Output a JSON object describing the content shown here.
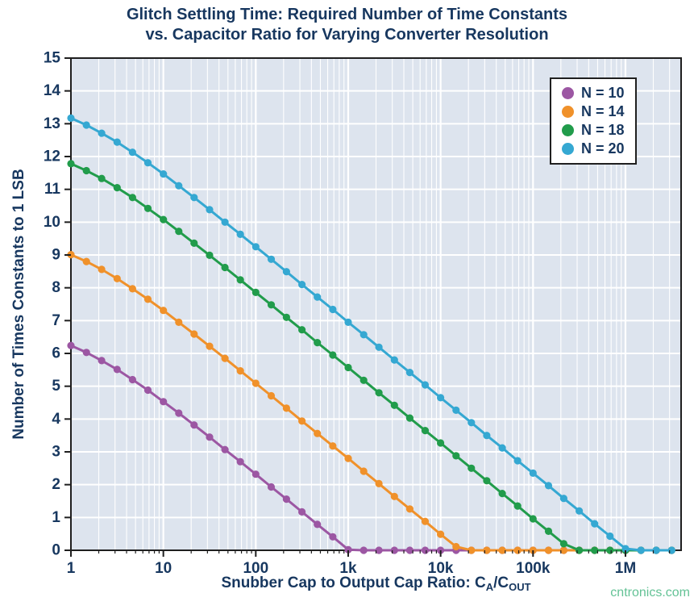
{
  "title": {
    "line1": "Glitch Settling Time: Required Number of Time Constants",
    "line2": "vs. Capacitor Ratio for Varying Converter Resolution"
  },
  "watermark": "cntronics.com",
  "chart_data": {
    "type": "line",
    "title": "Glitch Settling Time: Required Number of Time Constants vs. Capacitor Ratio for Varying Converter Resolution",
    "xlabel": "Snubber Cap to Output Cap Ratio: CA/COUT",
    "xlabel_parts": {
      "prefix": "Snubber Cap to Output Cap Ratio: C",
      "sub1": "A",
      "mid": "/C",
      "sub2": "OUT"
    },
    "ylabel": "Number of Times Constants to 1 LSB",
    "x_scale": "log",
    "grid": true,
    "legend_position": "top-right",
    "xlim": [
      1,
      4000000
    ],
    "ylim": [
      0,
      15
    ],
    "y_ticks": [
      0,
      1,
      2,
      3,
      4,
      5,
      6,
      7,
      8,
      9,
      10,
      11,
      12,
      13,
      14,
      15
    ],
    "x_ticks": [
      {
        "value": 1,
        "label": "1"
      },
      {
        "value": 10,
        "label": "10"
      },
      {
        "value": 100,
        "label": "100"
      },
      {
        "value": 1000,
        "label": "1k"
      },
      {
        "value": 10000,
        "label": "10k"
      },
      {
        "value": 100000,
        "label": "100k"
      },
      {
        "value": 1000000,
        "label": "1M"
      }
    ],
    "colors": {
      "plot_bg": "#dde4ee",
      "grid": "#ffffff",
      "axis": "#1f1f1f",
      "text": "#17375f"
    },
    "x": [
      1,
      1.47,
      2.15,
      3.16,
      4.64,
      6.81,
      10,
      14.7,
      21.5,
      31.6,
      46.4,
      68.1,
      100,
      147,
      215,
      316,
      464,
      681,
      1000,
      1470,
      2150,
      3160,
      4640,
      6810,
      10000,
      14700,
      21500,
      31600,
      46400,
      68100,
      100000,
      147000,
      215000,
      316000,
      464000,
      681000,
      1000000,
      1470000,
      2150000,
      3160000
    ],
    "series": [
      {
        "name": "N = 10",
        "color": "#9c57a3",
        "values": [
          6.24,
          6.03,
          5.78,
          5.51,
          5.2,
          4.88,
          4.53,
          4.18,
          3.82,
          3.45,
          3.07,
          2.7,
          2.32,
          1.93,
          1.56,
          1.17,
          0.79,
          0.41,
          0.02,
          0,
          0,
          0,
          0,
          0,
          0,
          0,
          0,
          0,
          0,
          0,
          0,
          0,
          0,
          0,
          0,
          0,
          0,
          0,
          0,
          0
        ]
      },
      {
        "name": "N = 14",
        "color": "#f0912a",
        "values": [
          9.01,
          8.8,
          8.56,
          8.28,
          7.97,
          7.65,
          7.31,
          6.95,
          6.59,
          6.22,
          5.85,
          5.47,
          5.09,
          4.71,
          4.33,
          3.94,
          3.56,
          3.18,
          2.8,
          2.41,
          2.03,
          1.64,
          1.26,
          0.88,
          0.49,
          0.11,
          0,
          0,
          0,
          0,
          0,
          0,
          0,
          0,
          0,
          0,
          0,
          0,
          0,
          0
        ]
      },
      {
        "name": "N = 18",
        "color": "#219c4b",
        "values": [
          11.78,
          11.57,
          11.33,
          11.05,
          10.75,
          10.42,
          10.08,
          9.72,
          9.36,
          8.99,
          8.62,
          8.24,
          7.86,
          7.48,
          7.1,
          6.72,
          6.33,
          5.95,
          5.57,
          5.18,
          4.8,
          4.42,
          4.03,
          3.65,
          3.27,
          2.88,
          2.5,
          2.12,
          1.73,
          1.35,
          0.96,
          0.58,
          0.2,
          0,
          0,
          0,
          0,
          0,
          0,
          0
        ]
      },
      {
        "name": "N = 20",
        "color": "#35a8d2",
        "values": [
          13.17,
          12.96,
          12.71,
          12.44,
          12.13,
          11.81,
          11.47,
          11.11,
          10.75,
          10.38,
          10.0,
          9.63,
          9.25,
          8.87,
          8.49,
          8.1,
          7.72,
          7.34,
          6.95,
          6.57,
          6.19,
          5.8,
          5.42,
          5.04,
          4.65,
          4.27,
          3.89,
          3.5,
          3.12,
          2.73,
          2.35,
          1.97,
          1.58,
          1.2,
          0.81,
          0.43,
          0.05,
          0,
          0,
          0
        ]
      }
    ]
  }
}
